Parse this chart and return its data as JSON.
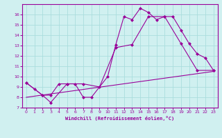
{
  "xlabel": "Windchill (Refroidissement éolien,°C)",
  "bg_color": "#d0f0f0",
  "grid_color": "#aadddd",
  "line_color": "#990099",
  "xlim": [
    -0.5,
    23.5
  ],
  "ylim": [
    7,
    17
  ],
  "xticks": [
    0,
    1,
    2,
    3,
    4,
    5,
    6,
    7,
    8,
    9,
    10,
    11,
    12,
    13,
    14,
    15,
    16,
    17,
    18,
    19,
    20,
    21,
    22,
    23
  ],
  "yticks": [
    7,
    8,
    9,
    10,
    11,
    12,
    13,
    14,
    15,
    16
  ],
  "line1_x": [
    0,
    1,
    2,
    3,
    4,
    5,
    6,
    7,
    8,
    10,
    11,
    12,
    13,
    14,
    15,
    16,
    17,
    18,
    19,
    20,
    21,
    22,
    23
  ],
  "line1_y": [
    9.4,
    8.8,
    8.2,
    8.2,
    9.3,
    9.3,
    9.3,
    8.0,
    8.0,
    10.0,
    13.1,
    15.8,
    15.5,
    16.6,
    16.2,
    15.5,
    15.8,
    15.8,
    14.5,
    13.2,
    12.2,
    11.8,
    10.6
  ],
  "line2_x": [
    0,
    2,
    3,
    5,
    7,
    9,
    11,
    13,
    15,
    17,
    19,
    21,
    23
  ],
  "line2_y": [
    9.4,
    8.2,
    7.5,
    9.3,
    9.3,
    9.0,
    12.8,
    13.1,
    15.8,
    15.8,
    13.2,
    10.6,
    10.6
  ],
  "line3_x": [
    0,
    23
  ],
  "line3_y": [
    8.0,
    10.5
  ]
}
